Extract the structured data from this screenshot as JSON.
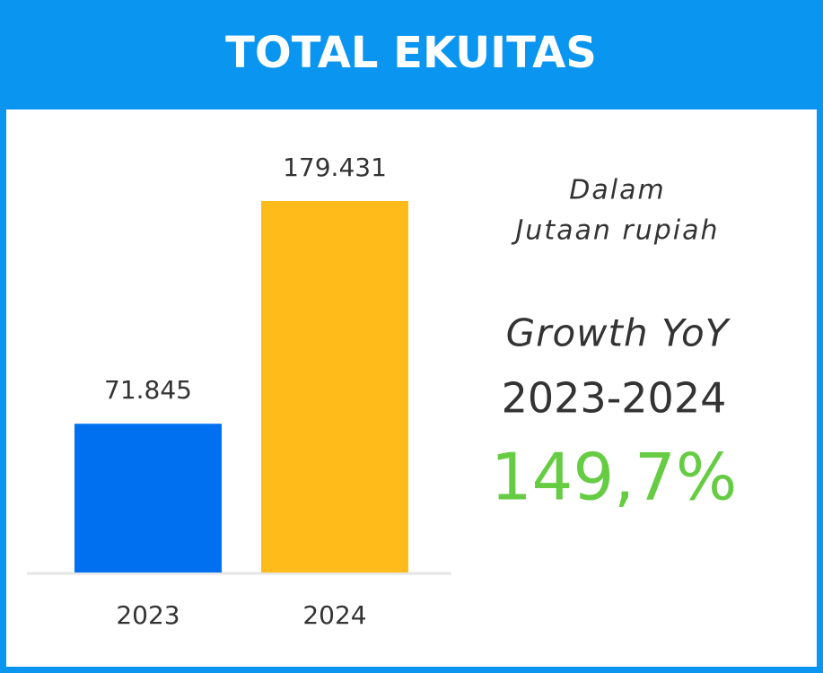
{
  "chart_data": {
    "type": "bar",
    "title": "TOTAL EKUITAS",
    "categories": [
      "2023",
      "2024"
    ],
    "values": [
      71845,
      179431
    ],
    "value_labels": [
      "71.845",
      "179.431"
    ],
    "colors": [
      "#0070f0",
      "#ffbb1a"
    ],
    "annotations": {
      "unit": [
        "Dalam",
        "Jutaan rupiah"
      ],
      "growth_label": "Growth YoY",
      "growth_period": "2023-2024",
      "growth_value": "149,7%"
    }
  }
}
